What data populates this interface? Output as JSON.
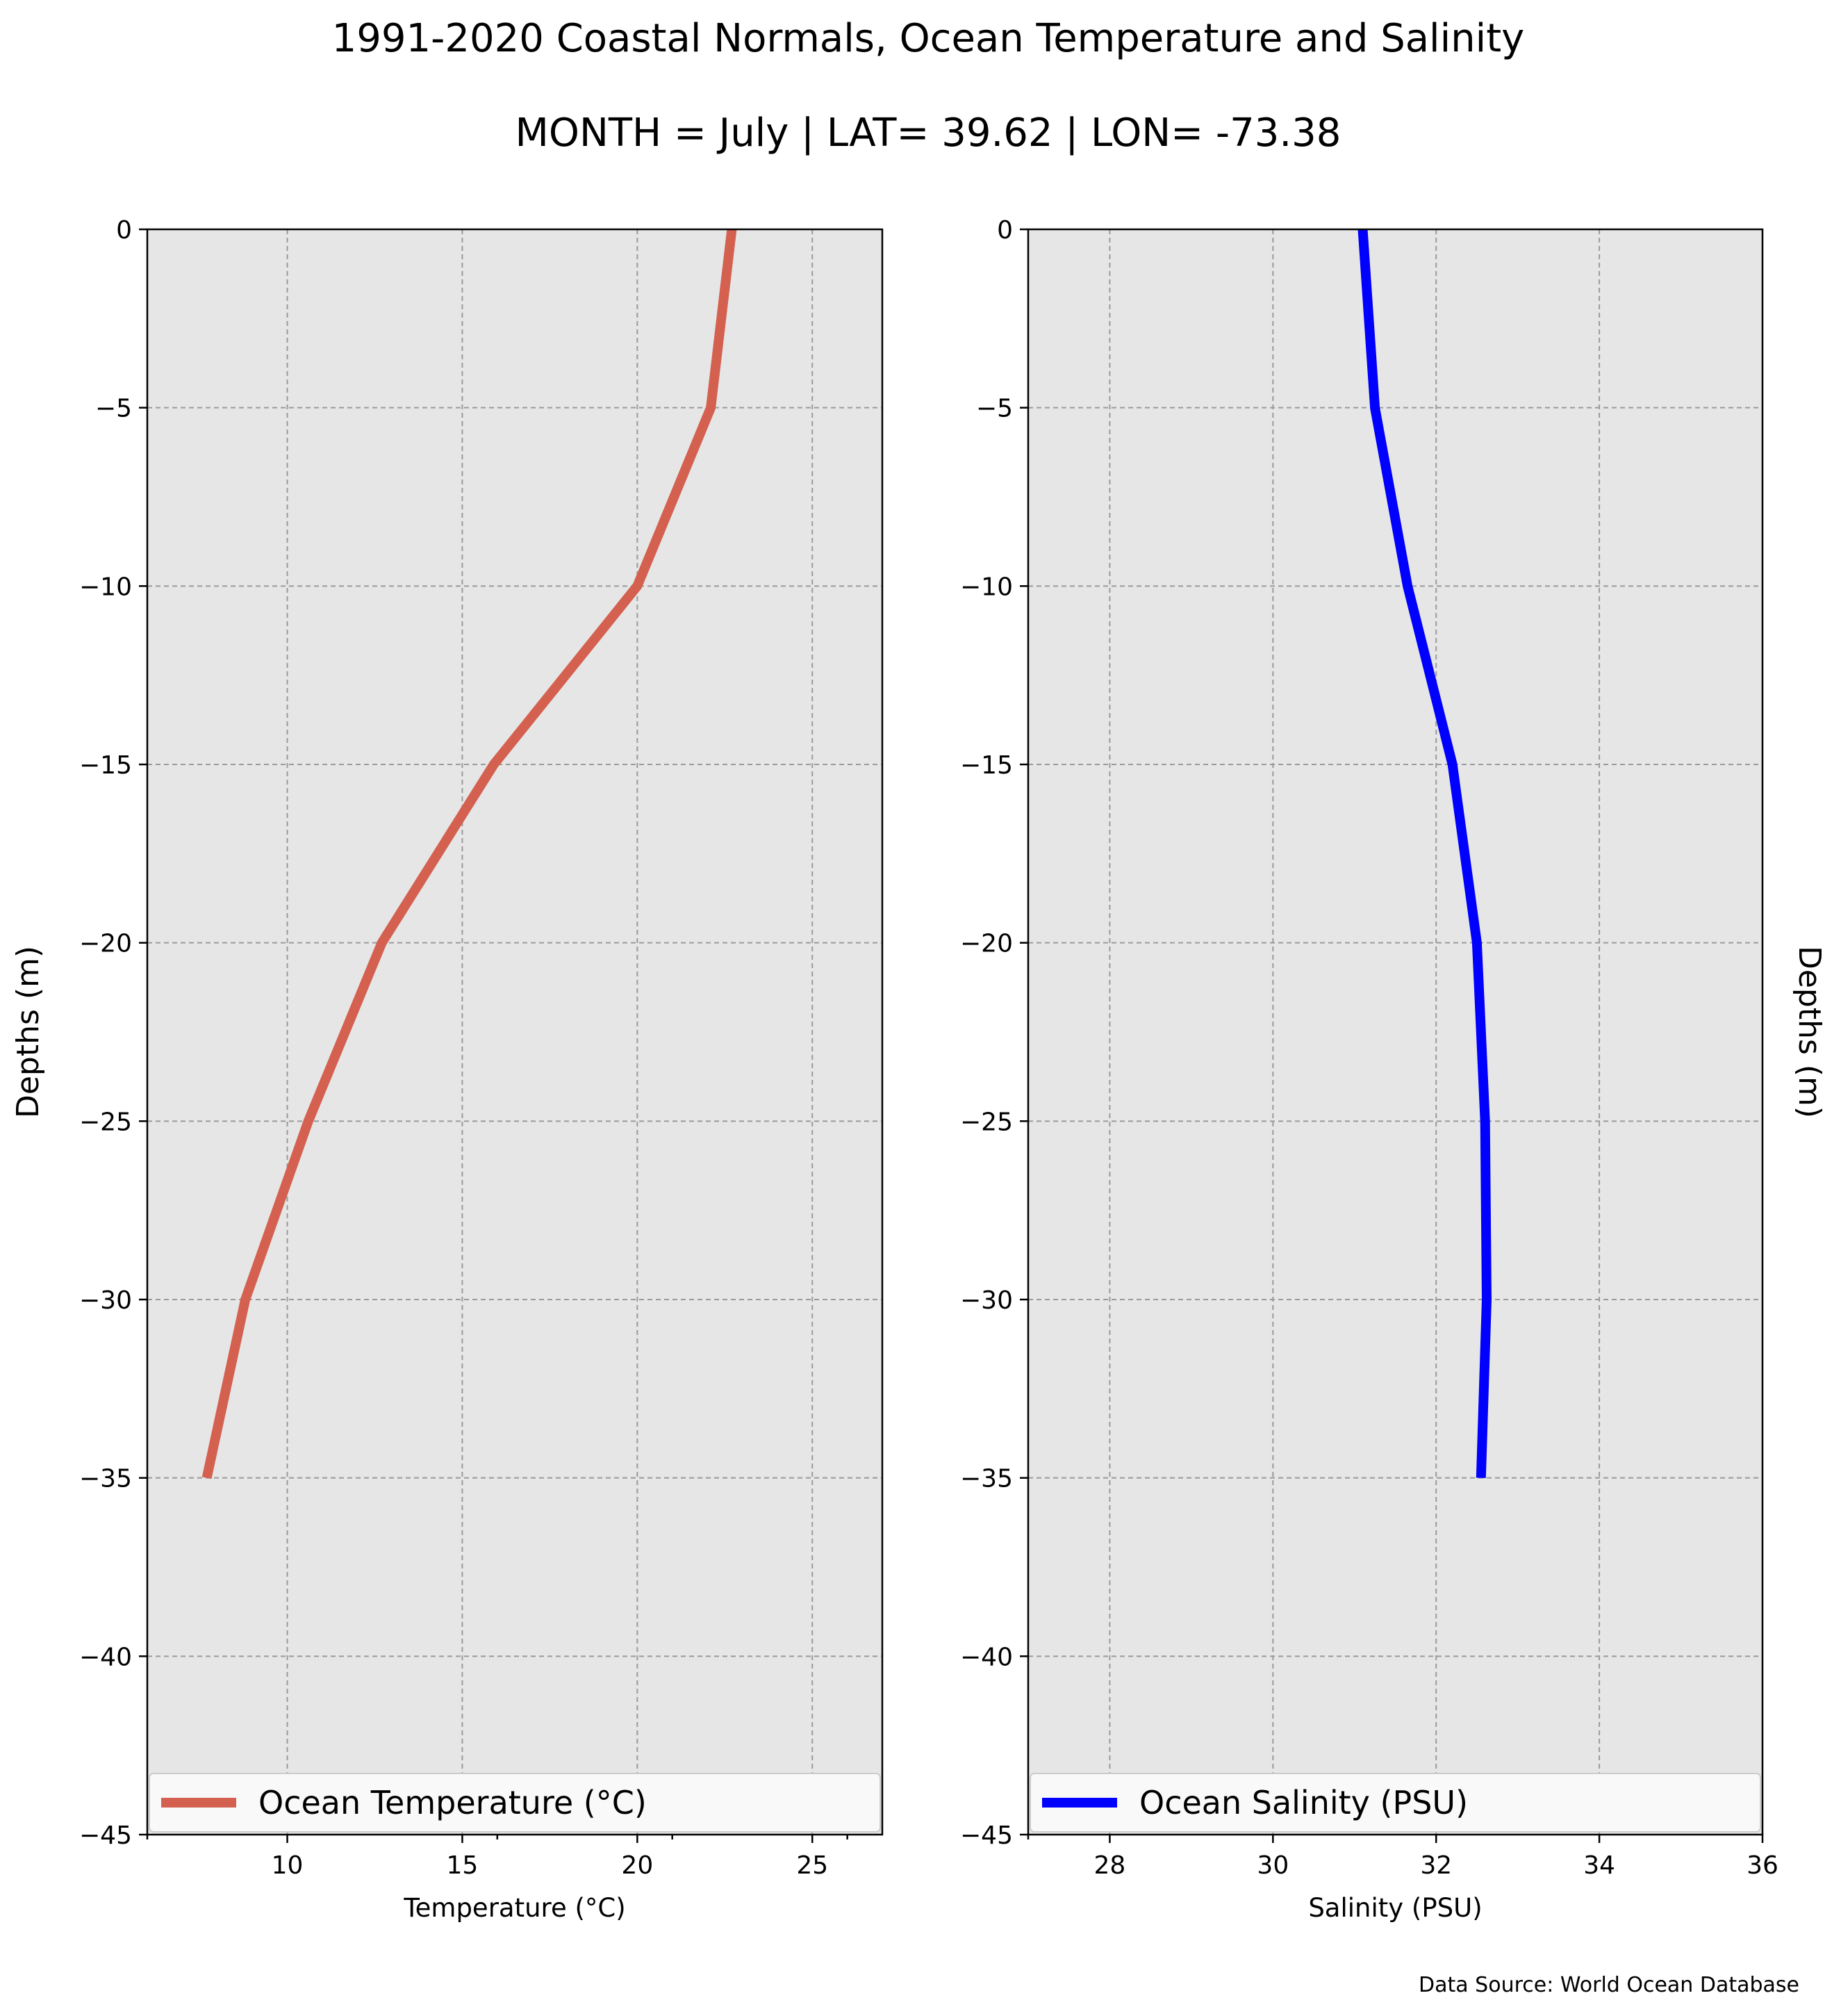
{
  "figure": {
    "title_line1": "1991-2020 Coastal Normals, Ocean Temperature and Salinity",
    "title_line2": "MONTH = July | LAT= 39.62 | LON= -73.38",
    "source_note": "Data Source: World Ocean Database",
    "plot_background": "#e6e6e6"
  },
  "chart_data": [
    {
      "type": "line",
      "xlabel": "Temperature ($^\\circ$C)",
      "xlabel_display": "Temperature (°C)",
      "ylabel": "Depths (m)",
      "xlim": [
        6,
        27
      ],
      "ylim": [
        -45,
        0
      ],
      "xticks": [
        10,
        15,
        20,
        25
      ],
      "xtick_labels": [
        "10",
        "15",
        "20",
        "25"
      ],
      "xminor_ticks": [
        6,
        16,
        21,
        26
      ],
      "yticks": [
        0,
        -5,
        -10,
        -15,
        -20,
        -25,
        -30,
        -35,
        -40,
        -45
      ],
      "ytick_labels": [
        "0",
        "−5",
        "−10",
        "−15",
        "−20",
        "−25",
        "−30",
        "−35",
        "−40",
        "−45"
      ],
      "grid": true,
      "legend_position": "bottom",
      "series": [
        {
          "name": "Ocean Temperature ($^\\circ$C)",
          "label_display": "Ocean Temperature (°C)",
          "color": "#d46050",
          "depth": [
            0,
            -5,
            -10,
            -15,
            -20,
            -25,
            -30,
            -35
          ],
          "values": [
            22.7,
            22.1,
            20.0,
            15.9,
            12.7,
            10.6,
            8.8,
            7.7
          ]
        }
      ]
    },
    {
      "type": "line",
      "xlabel": "Salinity (PSU)",
      "ylabel": "Depths (m)",
      "ylabel_side": "right",
      "xlim": [
        27,
        36
      ],
      "ylim": [
        -45,
        0
      ],
      "xticks": [
        28,
        30,
        32,
        34,
        36
      ],
      "xtick_labels": [
        "28",
        "30",
        "32",
        "34",
        "36"
      ],
      "xminor_ticks": [
        27
      ],
      "yticks": [
        0,
        -5,
        -10,
        -15,
        -20,
        -25,
        -30,
        -35,
        -40,
        -45
      ],
      "ytick_labels": [
        "0",
        "−5",
        "−10",
        "−15",
        "−20",
        "−25",
        "−30",
        "−35",
        "−40",
        "−45"
      ],
      "grid": true,
      "legend_position": "bottom",
      "series": [
        {
          "name": "Ocean Salinity (PSU)",
          "color": "#0000ff",
          "depth": [
            0,
            -5,
            -10,
            -15,
            -20,
            -25,
            -30,
            -35
          ],
          "values": [
            31.1,
            31.25,
            31.65,
            32.2,
            32.5,
            32.6,
            32.62,
            32.55
          ]
        }
      ]
    }
  ]
}
